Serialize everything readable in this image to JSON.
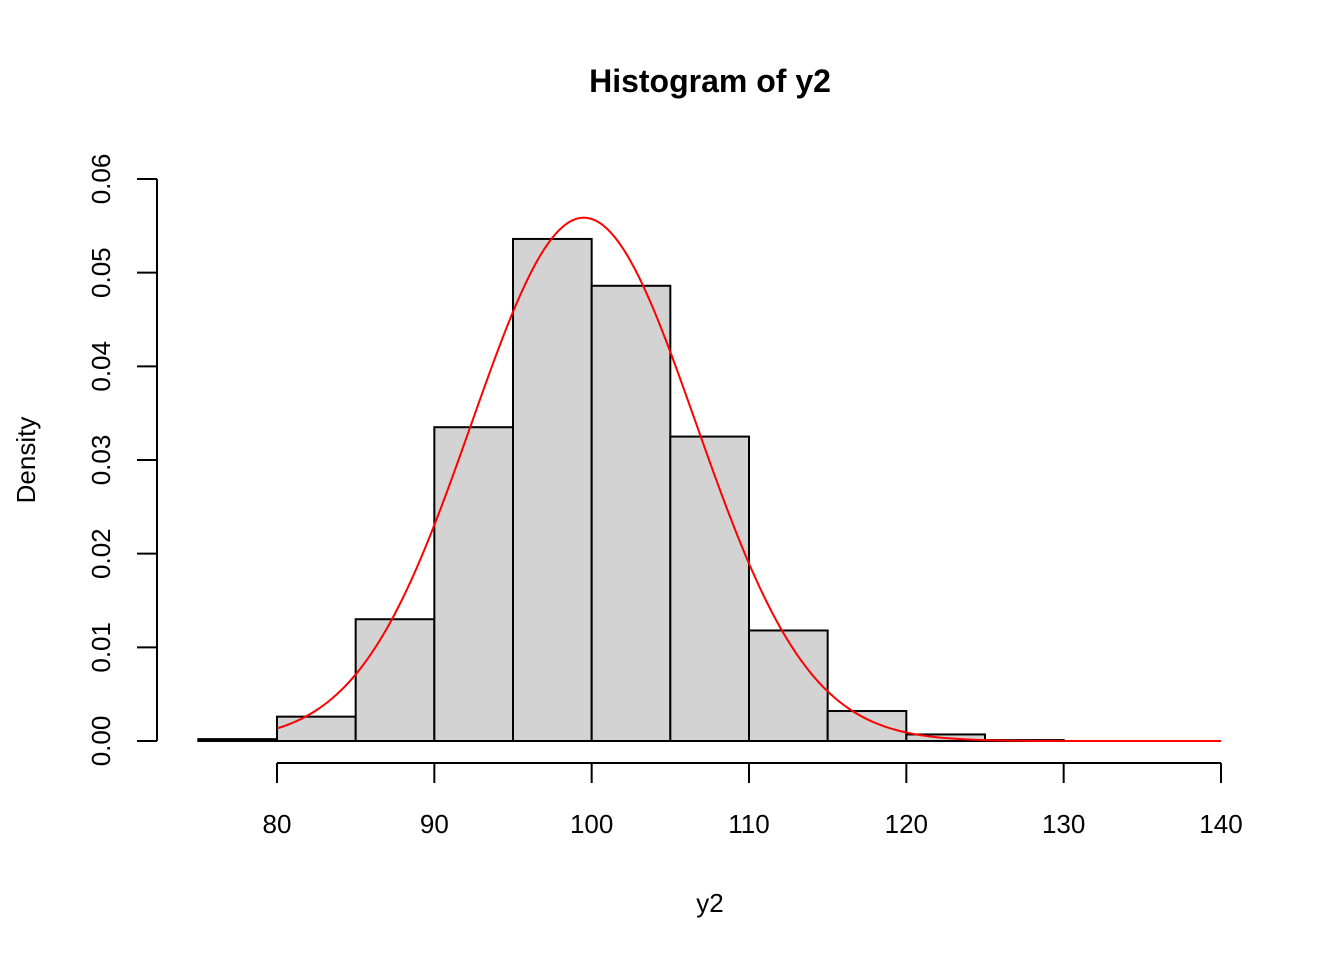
{
  "chart_data": {
    "type": "bar",
    "subtype": "histogram",
    "title": "Histogram of y2",
    "xlabel": "y2",
    "ylabel": "Density",
    "bin_edges": [
      75,
      80,
      85,
      90,
      95,
      100,
      105,
      110,
      115,
      120,
      125,
      130
    ],
    "categories": [
      "75-80",
      "80-85",
      "85-90",
      "90-95",
      "95-100",
      "100-105",
      "105-110",
      "110-115",
      "115-120",
      "120-125",
      "125-130"
    ],
    "values": [
      0.0002,
      0.0026,
      0.013,
      0.0335,
      0.0536,
      0.0486,
      0.0325,
      0.0118,
      0.0032,
      0.0007,
      0.0001
    ],
    "bar_fill": "#d3d3d3",
    "bar_stroke": "#000000",
    "overlay": {
      "type": "line",
      "name": "normal density curve",
      "distribution": "normal",
      "mean": 99.5,
      "sd": 7.14,
      "x_range": [
        80,
        140
      ],
      "color": "#ff0000"
    },
    "xlim": [
      75,
      140
    ],
    "ylim": [
      0,
      0.06
    ],
    "x_ticks": [
      80,
      90,
      100,
      110,
      120,
      130,
      140
    ],
    "x_tick_labels": [
      "80",
      "90",
      "100",
      "110",
      "120",
      "130",
      "140"
    ],
    "y_ticks": [
      0,
      0.01,
      0.02,
      0.03,
      0.04,
      0.05,
      0.06
    ],
    "y_tick_labels": [
      "0.00",
      "0.01",
      "0.02",
      "0.03",
      "0.04",
      "0.05",
      "0.06"
    ],
    "grid": false,
    "legend": null
  }
}
